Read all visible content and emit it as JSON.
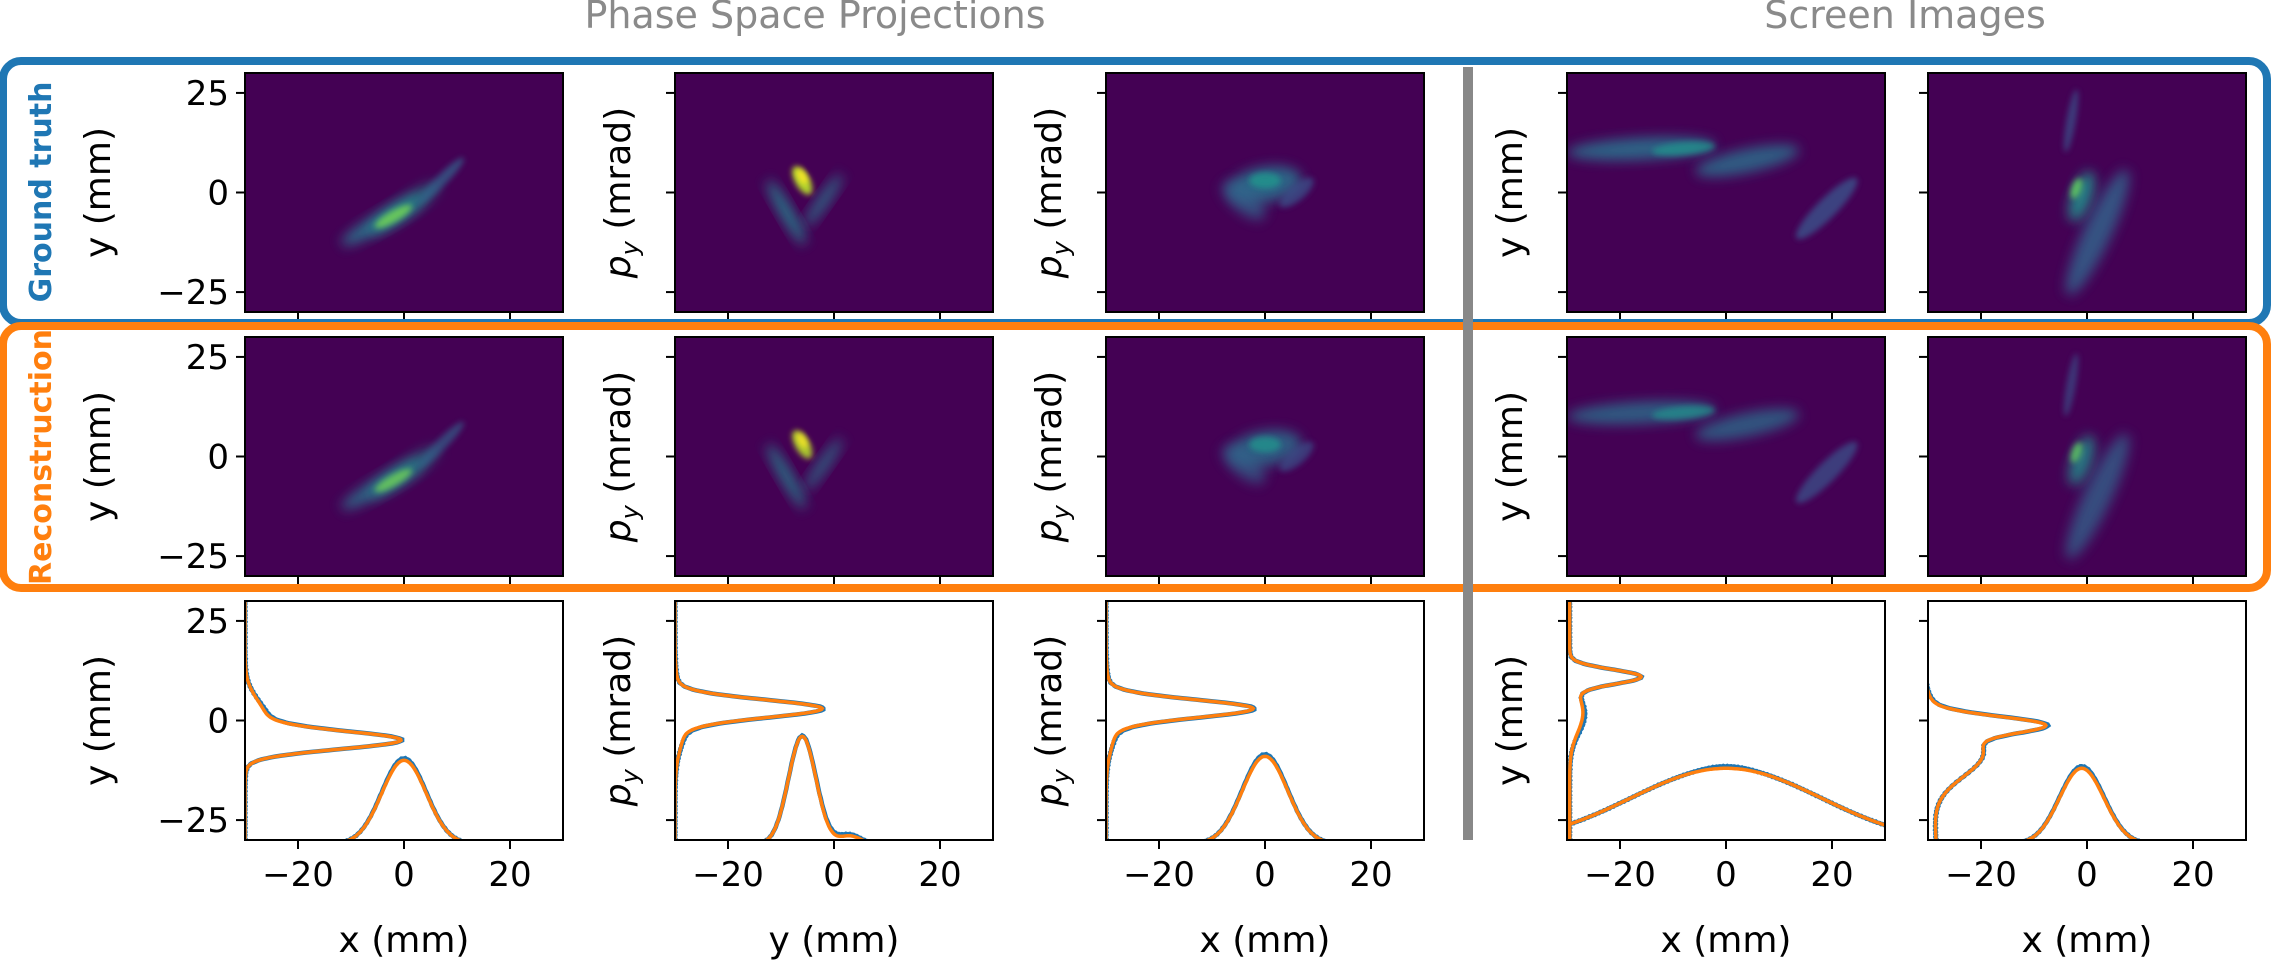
{
  "headers": {
    "left": "Phase Space Projections",
    "right": "Screen Images"
  },
  "row_labels": {
    "ground_truth": "Ground truth",
    "reconstruction": "Reconstruction"
  },
  "colors": {
    "ground_truth": "#1f77b4",
    "reconstruction": "#ff7f0e",
    "divider": "#888888",
    "header_text": "#8a8a8a",
    "heatmap_background": "#440154"
  },
  "chart_data": {
    "type": "heatmap",
    "x_range": [
      -30,
      30
    ],
    "y_range": [
      -30,
      30
    ],
    "x_ticks": [
      -20,
      0,
      20
    ],
    "y_ticks": [
      25,
      0,
      -25
    ],
    "columns": [
      {
        "xlabel": "x (mm)",
        "ylabel": "y (mm)",
        "ylabel_math": false,
        "group": "phase space"
      },
      {
        "xlabel": "y (mm)",
        "ylabel": "(mrad)",
        "ylabel_math": true,
        "group": "phase space"
      },
      {
        "xlabel": "x (mm)",
        "ylabel": "(mrad)",
        "ylabel_math": true,
        "group": "phase space"
      },
      {
        "xlabel": "x (mm)",
        "ylabel": "y (mm)",
        "ylabel_math": false,
        "group": "screen"
      },
      {
        "xlabel": "x (mm)",
        "ylabel": "",
        "ylabel_math": false,
        "group": "screen"
      }
    ],
    "ylabel_symbol": "p",
    "ylabel_subscript": "y",
    "projection_series": [
      {
        "name": "Ground truth",
        "color": "#1f77b4"
      },
      {
        "name": "Reconstruction",
        "color": "#ff7f0e"
      }
    ]
  }
}
